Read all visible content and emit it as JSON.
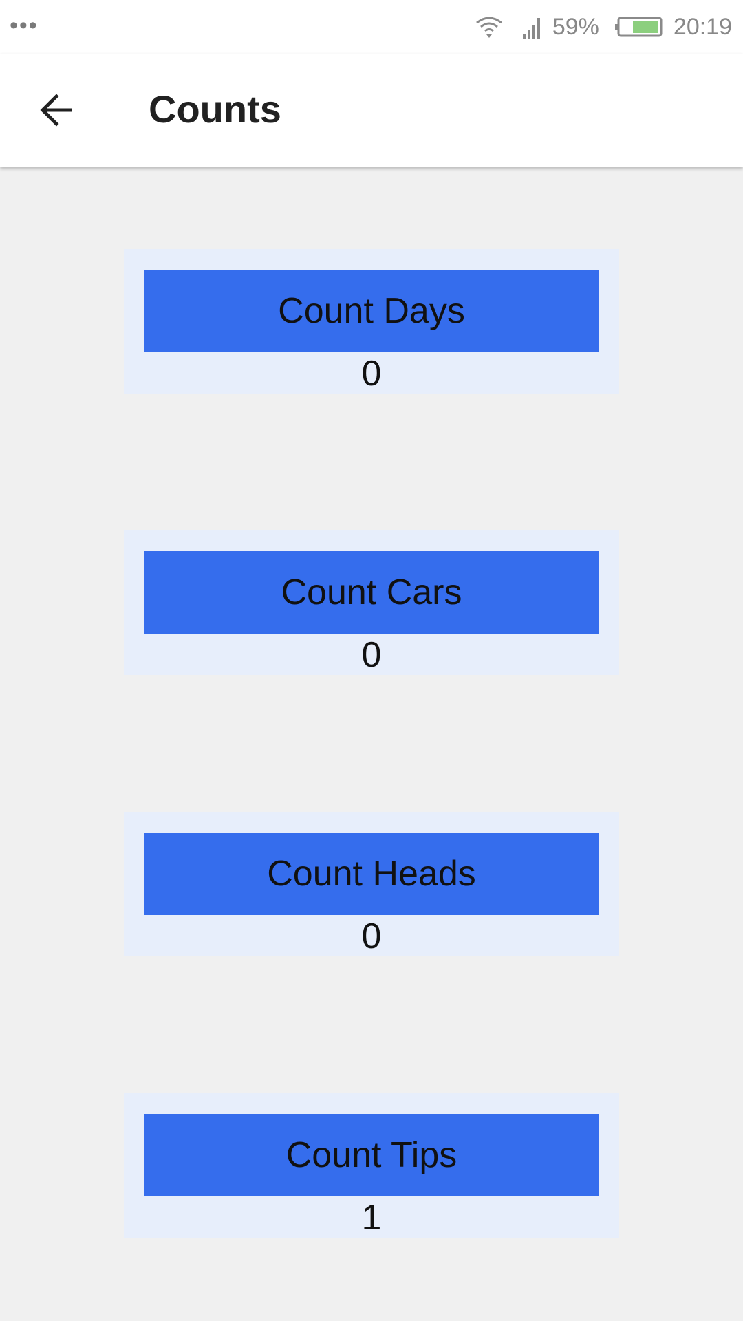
{
  "status_bar": {
    "menu_icon": "more-dots-icon",
    "wifi_icon": "wifi-icon",
    "signal_icon": "cell-signal-icon",
    "battery_percent": "59%",
    "battery_icon": "battery-icon",
    "battery_color": "#8ccf7e",
    "time": "20:19"
  },
  "app_bar": {
    "back_icon": "arrow-back-icon",
    "title": "Counts"
  },
  "colors": {
    "button_bg": "#356ded",
    "card_bg": "#e7eefb",
    "page_bg": "#f0f0f0"
  },
  "cards": [
    {
      "button_label": "Count Days",
      "value": "0"
    },
    {
      "button_label": "Count Cars",
      "value": "0"
    },
    {
      "button_label": "Count Heads",
      "value": "0"
    },
    {
      "button_label": "Count Tips",
      "value": "1"
    }
  ]
}
